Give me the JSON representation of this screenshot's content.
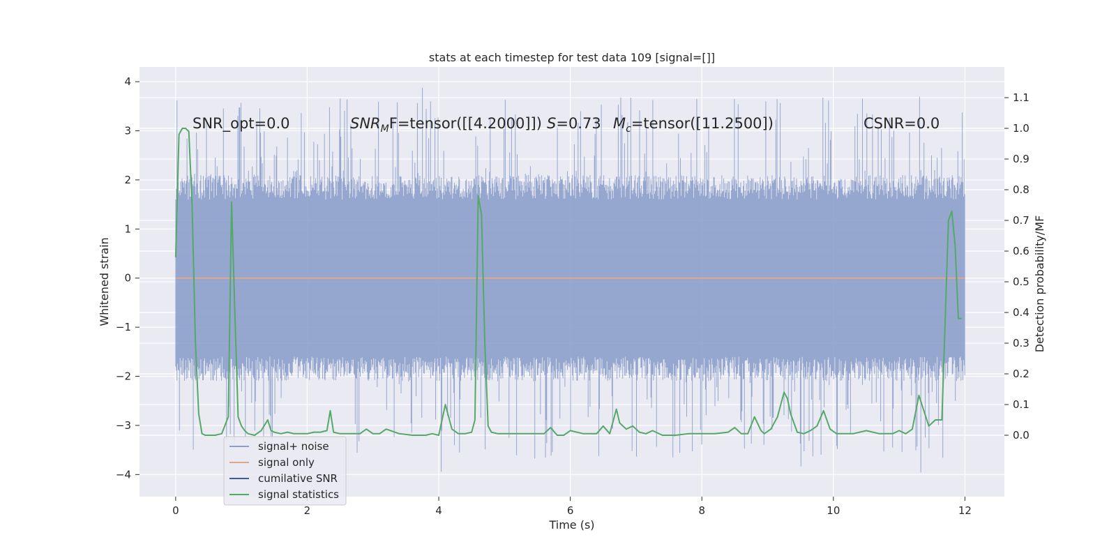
{
  "chart_data": {
    "type": "line",
    "title": "stats at each timestep for test data 109 [signal=[]]",
    "xlabel": "Time (s)",
    "ylabel": "Whitened strain",
    "ylabel_right": "Detection probability/MF",
    "xlim": [
      -0.55,
      12.6
    ],
    "ylim": [
      -4.45,
      4.3
    ],
    "ylim_right": [
      -0.2,
      1.2
    ],
    "x_ticks": [
      0,
      2,
      4,
      6,
      8,
      10,
      12
    ],
    "y_ticks": [
      -4,
      -3,
      -2,
      -1,
      0,
      1,
      2,
      3,
      4
    ],
    "y_right_ticks": [
      0.0,
      0.1,
      0.2,
      0.3,
      0.4,
      0.5,
      0.6,
      0.7,
      0.8,
      0.9,
      1.0,
      1.1
    ],
    "grid": true,
    "legend_position": "lower-left",
    "annotations": {
      "snr_opt": "SNR_opt=0.0",
      "snr_mf_base": "SNR",
      "snr_mf_sub": "M",
      "snr_mf_rest": "F=tensor([[4.2000]])",
      "s_italic": "S",
      "s_rest": "=0.73",
      "mc_base": "M",
      "mc_sub": "c",
      "mc_rest": "=tensor([11.2500])",
      "csnr": "CSNR=0.0"
    },
    "series": [
      {
        "name": "signal+ noise",
        "color": "#8da0cb",
        "axis": "left",
        "duration_s": 12,
        "typical_range": [
          -1.6,
          1.6
        ],
        "extreme_range": [
          -4.1,
          3.9
        ]
      },
      {
        "name": "signal only",
        "color": "#e1a58a",
        "axis": "left",
        "x": [
          0,
          12
        ],
        "y": [
          0,
          0
        ]
      },
      {
        "name": "cumilative SNR",
        "color": "#3b5ba5",
        "axis": "right",
        "x": [],
        "y": []
      },
      {
        "name": "signal statistics",
        "color": "#55a868",
        "axis": "right",
        "x": [
          0,
          0.05,
          0.1,
          0.15,
          0.2,
          0.25,
          0.3,
          0.35,
          0.4,
          0.45,
          0.5,
          0.55,
          0.6,
          0.7,
          0.8,
          0.85,
          0.9,
          0.95,
          1.0,
          1.05,
          1.1,
          1.2,
          1.3,
          1.4,
          1.45,
          1.5,
          1.6,
          1.7,
          1.8,
          1.9,
          2.0,
          2.1,
          2.2,
          2.3,
          2.35,
          2.4,
          2.5,
          2.6,
          2.8,
          2.9,
          3.0,
          3.1,
          3.2,
          3.4,
          3.6,
          3.8,
          3.9,
          4.0,
          4.1,
          4.2,
          4.3,
          4.4,
          4.5,
          4.55,
          4.6,
          4.65,
          4.7,
          4.75,
          4.8,
          4.9,
          5.0,
          5.2,
          5.4,
          5.6,
          5.7,
          5.8,
          5.9,
          6.0,
          6.2,
          6.4,
          6.5,
          6.6,
          6.7,
          6.75,
          6.85,
          6.95,
          7.05,
          7.15,
          7.25,
          7.4,
          7.6,
          7.8,
          8.0,
          8.2,
          8.4,
          8.5,
          8.6,
          8.7,
          8.8,
          8.9,
          8.95,
          9.05,
          9.15,
          9.25,
          9.3,
          9.35,
          9.45,
          9.55,
          9.65,
          9.75,
          9.85,
          9.95,
          10.05,
          10.15,
          10.3,
          10.5,
          10.7,
          10.8,
          10.9,
          11.0,
          11.1,
          11.2,
          11.3,
          11.45,
          11.55,
          11.65,
          11.75,
          11.8,
          11.85,
          11.9,
          11.95
        ],
        "y": [
          0.58,
          0.98,
          1.0,
          1.0,
          0.99,
          0.75,
          0.3,
          0.07,
          0.005,
          0.0,
          0.0,
          0.0,
          0.0,
          0.005,
          0.06,
          0.76,
          0.4,
          0.06,
          0.03,
          0.015,
          0.005,
          0.0,
          0.015,
          0.05,
          0.015,
          0.01,
          0.005,
          0.01,
          0.005,
          0.005,
          0.005,
          0.01,
          0.01,
          0.015,
          0.08,
          0.01,
          0.005,
          0.005,
          0.005,
          0.02,
          0.005,
          0.005,
          0.02,
          0.005,
          0.0,
          0.0,
          0.005,
          0.0,
          0.1,
          0.02,
          0.005,
          0.005,
          0.01,
          0.05,
          0.78,
          0.72,
          0.3,
          0.03,
          0.01,
          0.005,
          0.005,
          0.005,
          0.005,
          0.005,
          0.025,
          0.0,
          0.0,
          0.015,
          0.005,
          0.005,
          0.03,
          0.005,
          0.085,
          0.04,
          0.02,
          0.03,
          0.01,
          0.005,
          0.015,
          0.0,
          0.0,
          0.005,
          0.005,
          0.005,
          0.01,
          0.025,
          0.005,
          0.005,
          0.06,
          0.015,
          0.005,
          0.02,
          0.06,
          0.14,
          0.12,
          0.07,
          0.01,
          0.005,
          0.015,
          0.03,
          0.08,
          0.02,
          0.005,
          0.005,
          0.005,
          0.015,
          0.005,
          0.005,
          0.005,
          0.015,
          0.005,
          0.02,
          0.13,
          0.03,
          0.05,
          0.05,
          0.7,
          0.73,
          0.62,
          0.38,
          0.38
        ]
      }
    ]
  }
}
